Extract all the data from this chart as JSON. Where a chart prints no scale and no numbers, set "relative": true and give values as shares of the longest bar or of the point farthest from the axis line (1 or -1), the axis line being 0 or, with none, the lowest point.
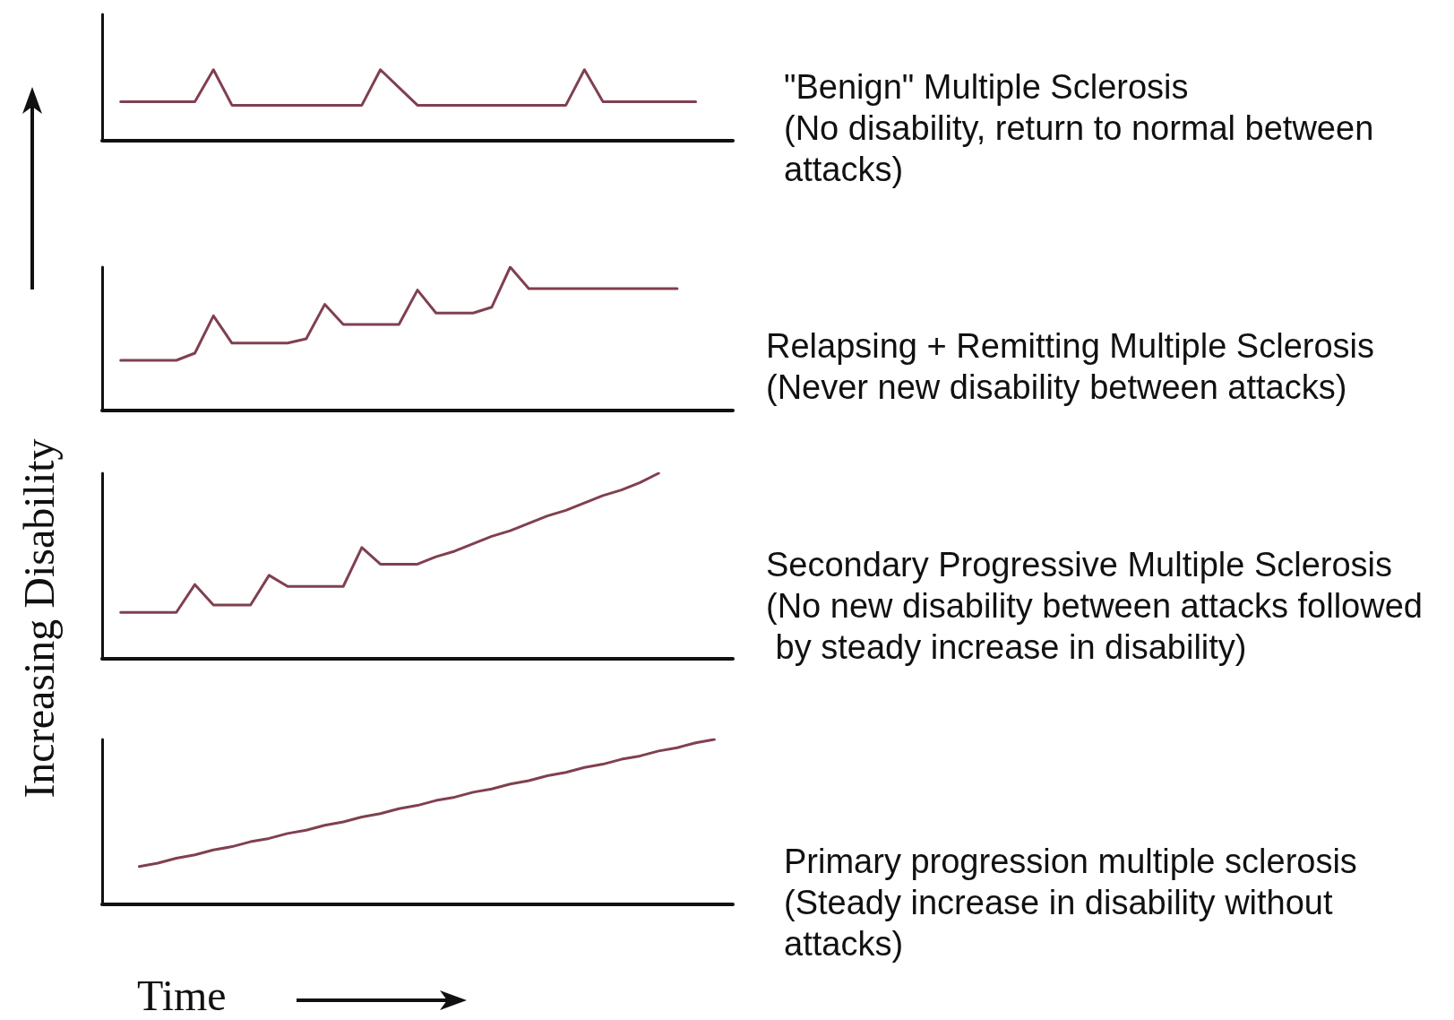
{
  "chart_data": [
    {
      "type": "line",
      "annotations": [
        "\"Benign\" Multiple Sclerosis",
        "(No disability, return to normal between attacks)"
      ],
      "relative": true,
      "color": "#80404f",
      "categories": [
        null,
        null,
        null,
        null,
        null,
        null,
        null,
        null,
        null,
        null,
        null,
        null,
        null,
        null,
        null,
        null,
        null,
        null,
        null,
        null,
        null,
        null,
        null,
        null,
        null,
        null,
        null,
        null,
        null,
        null,
        null,
        null,
        null,
        null,
        null
      ],
      "values": [
        null,
        0.55,
        0.55,
        0.55,
        0.55,
        0.55,
        1,
        0.5,
        0.5,
        0.5,
        0.5,
        0.5,
        0.5,
        0.5,
        0.5,
        1,
        0.75,
        0.5,
        0.5,
        0.5,
        0.5,
        0.5,
        0.5,
        0.5,
        0.5,
        0.5,
        1,
        0.55,
        0.55,
        0.55,
        0.55,
        0.55,
        0.55,
        null,
        null
      ]
    },
    {
      "type": "line",
      "annotations": [
        "Relapsing + Remitting Multiple Sclerosis",
        "(Never new disability between attacks)"
      ],
      "relative": true,
      "color": "#80404f",
      "categories": [
        null,
        null,
        null,
        null,
        null,
        null,
        null,
        null,
        null,
        null,
        null,
        null,
        null,
        null,
        null,
        null,
        null,
        null,
        null,
        null,
        null,
        null,
        null,
        null,
        null,
        null,
        null,
        null,
        null,
        null,
        null,
        null,
        null,
        null,
        null
      ],
      "values": [
        null,
        0.35,
        0.35,
        0.35,
        0.35,
        0.4,
        0.66,
        0.47,
        0.47,
        0.47,
        0.47,
        0.5,
        0.74,
        0.6,
        0.6,
        0.6,
        0.6,
        0.84,
        0.68,
        0.68,
        0.68,
        0.72,
        1,
        0.85,
        0.85,
        0.85,
        0.85,
        0.85,
        0.85,
        0.85,
        0.85,
        0.85,
        null,
        null,
        null
      ]
    },
    {
      "type": "line",
      "annotations": [
        "Secondary Progressive Multiple Sclerosis",
        "(No new disability between attacks followed by steady increase in disability)"
      ],
      "ylabel": "Increasing Disability",
      "relative": true,
      "color": "#80404f",
      "categories": [
        null,
        null,
        null,
        null,
        null,
        null,
        null,
        null,
        null,
        null,
        null,
        null,
        null,
        null,
        null,
        null,
        null,
        null,
        null,
        null,
        null,
        null,
        null,
        null,
        null,
        null,
        null,
        null,
        null,
        null,
        null,
        null,
        null,
        null,
        null
      ],
      "values": [
        null,
        0.25,
        0.25,
        0.25,
        0.25,
        0.4,
        0.29,
        0.29,
        0.29,
        0.45,
        0.39,
        0.39,
        0.39,
        0.39,
        0.6,
        0.51,
        0.51,
        0.51,
        0.55,
        0.58,
        0.62,
        0.66,
        0.69,
        0.73,
        0.77,
        0.8,
        0.84,
        0.88,
        0.91,
        0.95,
        1,
        null,
        null,
        null,
        null
      ]
    },
    {
      "type": "line",
      "annotations": [
        "Primary progression multiple sclerosis",
        "(Steady increase in disability without attacks)"
      ],
      "xlabel": "Time",
      "relative": true,
      "color": "#80404f",
      "categories": [
        null,
        null,
        null,
        null,
        null,
        null,
        null,
        null,
        null,
        null,
        null,
        null,
        null,
        null,
        null,
        null,
        null,
        null,
        null,
        null,
        null,
        null,
        null,
        null,
        null,
        null,
        null,
        null,
        null,
        null,
        null,
        null,
        null,
        null,
        null
      ],
      "values": [
        null,
        null,
        0.23,
        0.25,
        0.28,
        0.3,
        0.33,
        0.35,
        0.38,
        0.4,
        0.43,
        0.45,
        0.48,
        0.5,
        0.53,
        0.55,
        0.58,
        0.6,
        0.63,
        0.65,
        0.68,
        0.7,
        0.73,
        0.75,
        0.78,
        0.8,
        0.83,
        0.85,
        0.88,
        0.9,
        0.93,
        0.95,
        0.98,
        1,
        null
      ]
    }
  ]
}
